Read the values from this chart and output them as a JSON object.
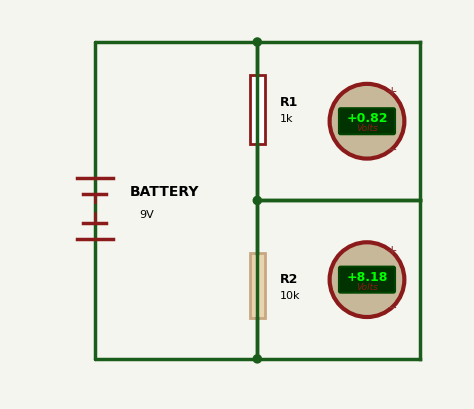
{
  "bg_color": "#f5f5f0",
  "wire_color": "#1a5c1a",
  "wire_lw": 2.5,
  "battery_color": "#8b1a1a",
  "resistor1_color": "#8b1a1a",
  "resistor2_color": "#c8a882",
  "meter_border_color": "#8b1a1a",
  "meter_bg_color": "#c8b89a",
  "meter_screen_color": "#003300",
  "meter_text_color": "#00ff00",
  "meter_label_color": "#8b1a1a",
  "plus_minus_color": "#8b3333",
  "node_color": "#1a5c1a",
  "battery_label": "BATTERY",
  "battery_value": "9V",
  "r1_label": "R1",
  "r1_value": "1k",
  "r2_label": "R2",
  "r2_value": "10k",
  "v1_value": "+0.82",
  "v1_unit": "Volts",
  "v2_value": "+8.18",
  "v2_unit": "Volts",
  "figsize": [
    4.74,
    4.09
  ],
  "dpi": 100
}
